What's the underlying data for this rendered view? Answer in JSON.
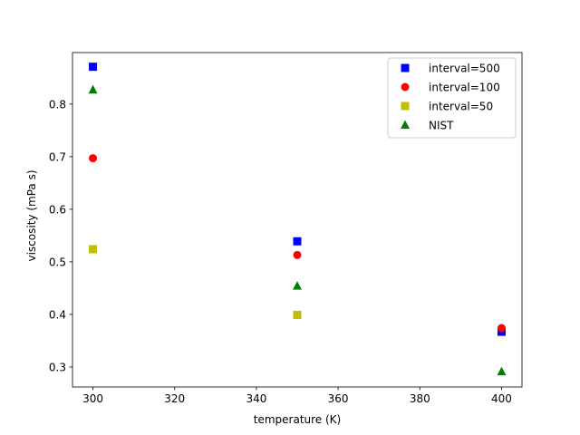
{
  "chart_data": {
    "type": "scatter",
    "title": "",
    "xlabel": "temperature (K)",
    "ylabel": "viscosity (mPa s)",
    "xlim": [
      295,
      405
    ],
    "ylim": [
      0.262,
      0.898
    ],
    "xticks": [
      300,
      320,
      340,
      360,
      380,
      400
    ],
    "yticks": [
      0.3,
      0.4,
      0.5,
      0.6,
      0.7,
      0.8
    ],
    "xtick_labels": [
      "300",
      "320",
      "340",
      "360",
      "380",
      "400"
    ],
    "ytick_labels": [
      "0.3",
      "0.4",
      "0.5",
      "0.6",
      "0.7",
      "0.8"
    ],
    "grid": false,
    "legend_position": "upper right",
    "series": [
      {
        "name": "interval=500",
        "marker": "square",
        "color": "#0000ff",
        "x": [
          300,
          350,
          400
        ],
        "y": [
          0.871,
          0.539,
          0.367
        ]
      },
      {
        "name": "interval=100",
        "marker": "circle",
        "color": "#ff0000",
        "x": [
          300,
          350,
          400
        ],
        "y": [
          0.697,
          0.513,
          0.374
        ]
      },
      {
        "name": "interval=50",
        "marker": "square",
        "color": "#bfbf00",
        "x": [
          300,
          350
        ],
        "y": [
          0.524,
          0.399
        ]
      },
      {
        "name": "NIST",
        "marker": "triangle",
        "color": "#008000",
        "x": [
          300,
          350,
          400
        ],
        "y": [
          0.827,
          0.454,
          0.291
        ]
      }
    ]
  }
}
